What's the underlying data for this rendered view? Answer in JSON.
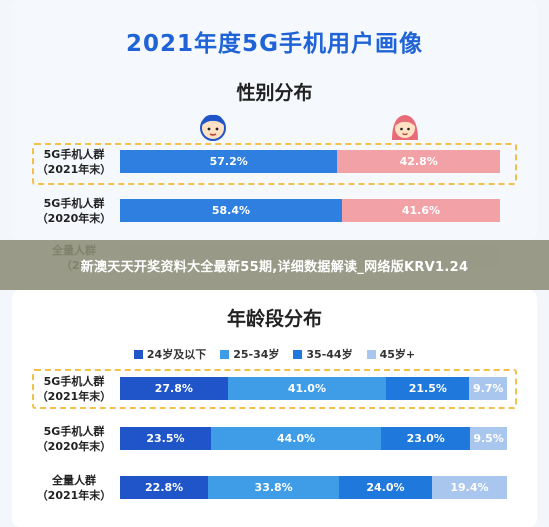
{
  "title": "2021年度5G手机用户画像",
  "banner": "新澳天天开奖资料大全最新55期,详细数据解读_网络版KRV1.24",
  "chart_data": [
    {
      "type": "bar",
      "orientation": "horizontal-stacked-100",
      "title": "性别分布",
      "categories": [
        "5G手机人群（2021年末）",
        "5G手机人群（2020年末）",
        "全量人群（20…）"
      ],
      "category_lines": [
        [
          "5G手机人群",
          "（2021年末）"
        ],
        [
          "5G手机人群",
          "（2020年末）"
        ],
        [
          "全量人群",
          "（20"
        ]
      ],
      "series": [
        {
          "name": "",
          "color": "#2f7fe0",
          "values": [
            57.2,
            58.4,
            null
          ]
        },
        {
          "name": "",
          "color": "#f2a1a6",
          "values": [
            42.8,
            41.6,
            null
          ]
        }
      ],
      "highlight_row": 0
    },
    {
      "type": "bar",
      "orientation": "horizontal-stacked-100",
      "title": "年龄段分布",
      "categories": [
        "5G手机人群（2021年末）",
        "5G手机人群（2020年末）",
        "全量人群（2021年末）"
      ],
      "category_lines": [
        [
          "5G手机人群",
          "（2021年末）"
        ],
        [
          "5G手机人群",
          "（2020年末）"
        ],
        [
          "全量人群",
          "（2021年末）"
        ]
      ],
      "series": [
        {
          "name": "24岁及以下",
          "color": "#1f55c8",
          "values": [
            27.8,
            23.5,
            22.8
          ]
        },
        {
          "name": "25-34岁",
          "color": "#3f9de8",
          "values": [
            41.0,
            44.0,
            33.8
          ]
        },
        {
          "name": "35-44岁",
          "color": "#1f78dc",
          "values": [
            21.5,
            23.0,
            24.0
          ]
        },
        {
          "name": "45岁+",
          "color": "#a9c7ee",
          "values": [
            9.7,
            9.5,
            19.4
          ]
        }
      ],
      "highlight_row": 0
    }
  ]
}
